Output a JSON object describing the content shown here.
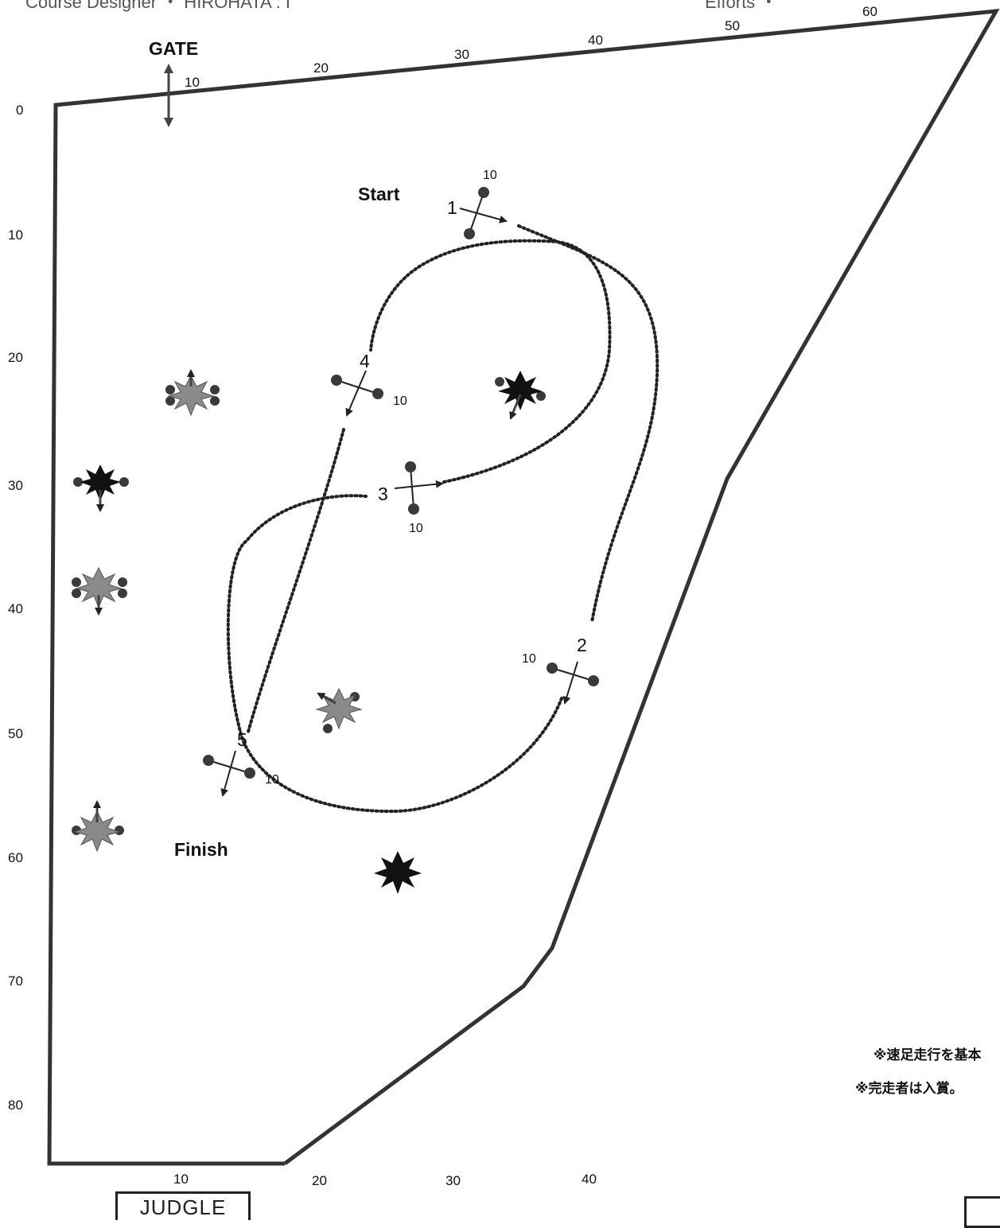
{
  "header": {
    "left": "Course Designer  ・  HIROHATA : I",
    "right": "Efforts ・"
  },
  "top_ticks": [
    "10",
    "20",
    "30",
    "40",
    "50",
    "60"
  ],
  "left_ticks": [
    "0",
    "10",
    "20",
    "30",
    "40",
    "50",
    "60",
    "70",
    "80"
  ],
  "bottom_ticks": [
    "10",
    "20",
    "30",
    "40"
  ],
  "gate_label": "GATE",
  "start_label": "Start",
  "finish_label": "Finish",
  "judge_label": "JUDGLE",
  "obstacles": [
    {
      "number": "1",
      "height": "10"
    },
    {
      "number": "2",
      "height": "10"
    },
    {
      "number": "3",
      "height": "10"
    },
    {
      "number": "4",
      "height": "10"
    },
    {
      "number": "5",
      "height": "10"
    }
  ],
  "notes": [
    "※速足走行を基本",
    "※完走者は入賞。"
  ],
  "colors": {
    "fence": "#333333",
    "route": "#222222",
    "pole": "#3a3a3a",
    "decor_dark": "#111111",
    "decor_grey": "#8a8a8a"
  }
}
